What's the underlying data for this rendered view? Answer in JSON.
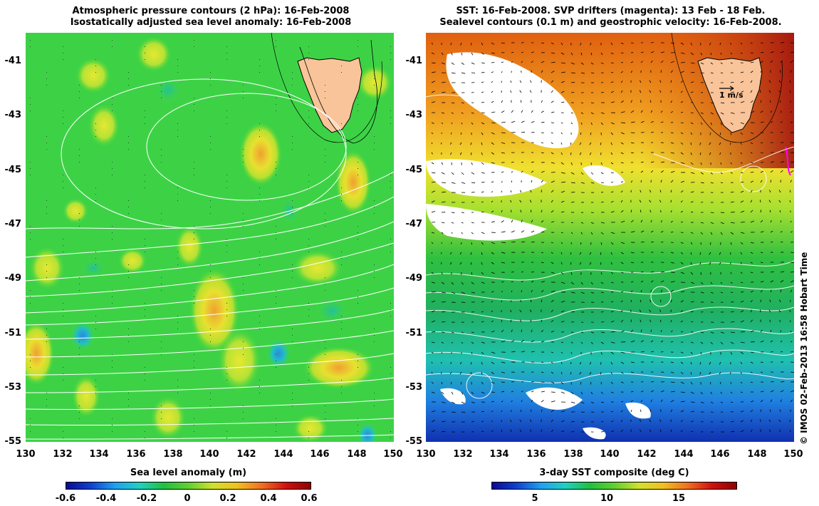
{
  "left_title": {
    "line1": "Atmospheric pressure contours (2 hPa): 16-Feb-2008",
    "line2": "Isostatically adjusted sea level anomaly: 16-Feb-2008"
  },
  "right_title": {
    "line1": "SST: 16-Feb-2008. SVP drifters (magenta): 13 Feb - 18 Feb.",
    "line2": "Sealevel contours (0.1 m) and geostrophic velocity: 16-Feb-2008."
  },
  "y_ticks": [
    "-41",
    "-43",
    "-45",
    "-47",
    "-49",
    "-51",
    "-53",
    "-55"
  ],
  "x_ticks": [
    "130",
    "132",
    "134",
    "136",
    "138",
    "140",
    "142",
    "144",
    "146",
    "148",
    "150"
  ],
  "left_colorbar": {
    "title": "Sea level anomaly (m)",
    "ticks": [
      "-0.6",
      "-0.4",
      "-0.2",
      "0",
      "0.2",
      "0.4",
      "0.6"
    ],
    "range": [
      -0.6,
      0.6
    ]
  },
  "right_colorbar": {
    "title": "3-day SST composite (deg C)",
    "ticks": [
      "5",
      "10",
      "15"
    ],
    "range": [
      2,
      19
    ]
  },
  "velocity_scale_label": "1 m/s",
  "credit": "© IMOS 02-Feb-2013 16:58 Hobart Time",
  "colors": {
    "land": "#f9c499",
    "ocean_green": "#2fd23c",
    "contour": "#ffffff",
    "drifter": "#ff00ff"
  }
}
